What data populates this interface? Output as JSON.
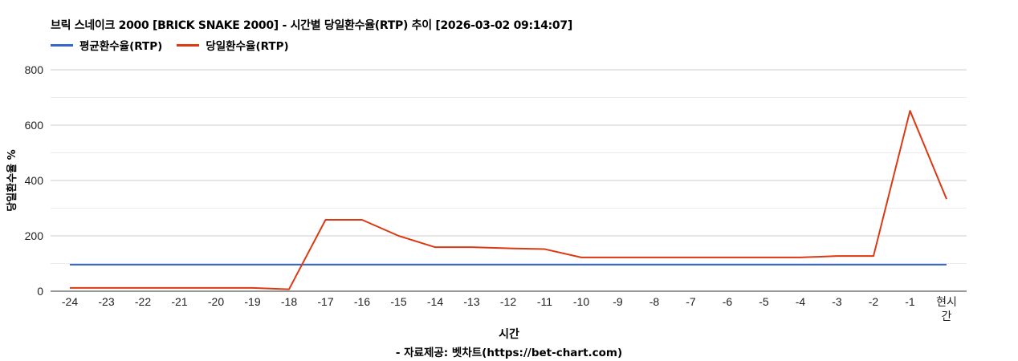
{
  "chart_data": {
    "type": "line",
    "title": "브릭 스네이크 2000 [BRICK SNAKE 2000] - 시간별 당일환수율(RTP) 추이 [2026-03-02 09:14:07]",
    "xlabel": "시간",
    "ylabel": "당일환수율 %",
    "source": "- 자료제공: 벳차트(https://bet-chart.com)",
    "categories": [
      "-24",
      "-23",
      "-22",
      "-21",
      "-20",
      "-19",
      "-18",
      "-17",
      "-16",
      "-15",
      "-14",
      "-13",
      "-12",
      "-11",
      "-10",
      "-9",
      "-8",
      "-7",
      "-6",
      "-5",
      "-4",
      "-3",
      "-2",
      "-1",
      "현시간"
    ],
    "series": [
      {
        "name": "평균환수율(RTP)",
        "color": "#3366cc",
        "values": [
          96,
          96,
          96,
          96,
          96,
          96,
          96,
          96,
          96,
          96,
          96,
          96,
          96,
          96,
          96,
          96,
          96,
          96,
          96,
          96,
          96,
          96,
          96,
          96,
          96
        ]
      },
      {
        "name": "당일환수율(RTP)",
        "color": "#dc3912",
        "values": [
          12,
          12,
          12,
          12,
          12,
          12,
          7,
          258,
          258,
          200,
          159,
          159,
          155,
          152,
          122,
          122,
          122,
          122,
          122,
          122,
          122,
          127,
          127,
          652,
          333
        ]
      }
    ],
    "ylim": [
      0,
      800
    ],
    "yticks": [
      0,
      200,
      400,
      600,
      800
    ],
    "grid": true,
    "legend_position": "top"
  }
}
